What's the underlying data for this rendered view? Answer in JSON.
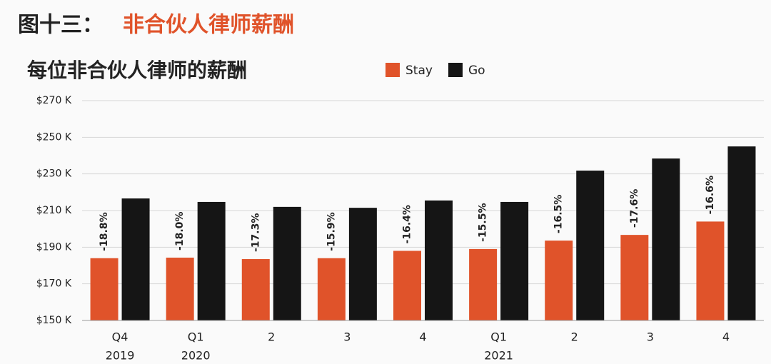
{
  "header": {
    "prefix": "图十三：",
    "title": "非合伙人律师薪酬"
  },
  "chart_data": {
    "type": "bar",
    "title": "每位非合伙人律师的薪酬",
    "categories": [
      "Q4",
      "Q1",
      "2",
      "3",
      "4",
      "Q1",
      "2",
      "3",
      "4"
    ],
    "category_years": [
      "2019",
      "2020",
      null,
      null,
      null,
      "2021",
      null,
      null,
      null
    ],
    "series": [
      {
        "name": "Stay",
        "color": "#e0532a",
        "values": [
          184,
          184.3,
          183.5,
          184,
          188,
          189,
          193.6,
          196.7,
          204
        ]
      },
      {
        "name": "Go",
        "color": "#151515",
        "values": [
          216.6,
          214.7,
          212,
          211.5,
          215.5,
          214.7,
          231.8,
          238.4,
          245
        ]
      }
    ],
    "annotations": [
      "-18.8%",
      "-18.0%",
      "-17.3%",
      "-15.9%",
      "-16.4%",
      "-15.5%",
      "-16.5%",
      "-17.6%",
      "-16.6%"
    ],
    "ylim": [
      150,
      270
    ],
    "yticks": [
      {
        "value": 150,
        "label": "$150 K"
      },
      {
        "value": 170,
        "label": "$170 K"
      },
      {
        "value": 190,
        "label": "$190 K"
      },
      {
        "value": 210,
        "label": "$210 K"
      },
      {
        "value": 230,
        "label": "$230 K"
      },
      {
        "value": 250,
        "label": "$250 K"
      },
      {
        "value": 270,
        "label": "$270 K"
      }
    ],
    "grid": true,
    "legend": "top"
  }
}
